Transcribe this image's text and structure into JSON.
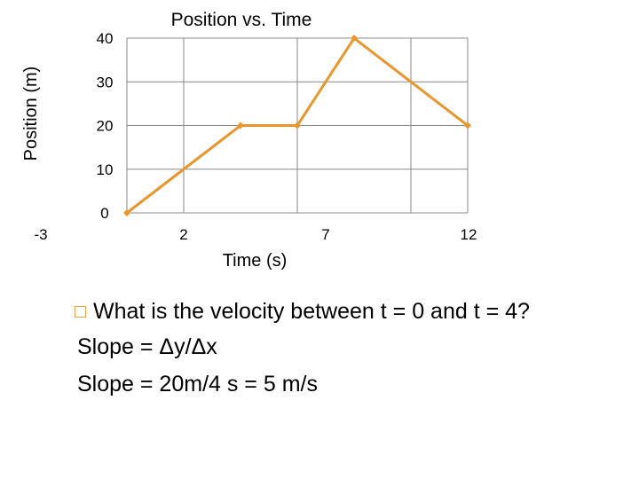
{
  "chart_data": {
    "type": "line",
    "title": "Position vs. Time",
    "xlabel": "Time (s)",
    "ylabel": "Position (m)",
    "x_tick_labels": [
      "-3",
      "2",
      "7",
      "12"
    ],
    "y_tick_labels": [
      "0",
      "10",
      "20",
      "30",
      "40"
    ],
    "ylim": [
      0,
      40
    ],
    "grid": true,
    "series": [
      {
        "points": [
          {
            "x": 0,
            "y": 0
          },
          {
            "x": 4,
            "y": 20
          },
          {
            "x": 6,
            "y": 20
          },
          {
            "x": 8,
            "y": 40
          },
          {
            "x": 12,
            "y": 20
          }
        ]
      }
    ],
    "line_color": "#e8972e",
    "grid_color": "#888888"
  },
  "notes": {
    "question": "What is the velocity between t = 0 and t = 4?",
    "line1": "Slope = Δy/Δx",
    "line2": "Slope = 20m/4 s = 5 m/s",
    "bullet_color": "#e8a24a"
  }
}
